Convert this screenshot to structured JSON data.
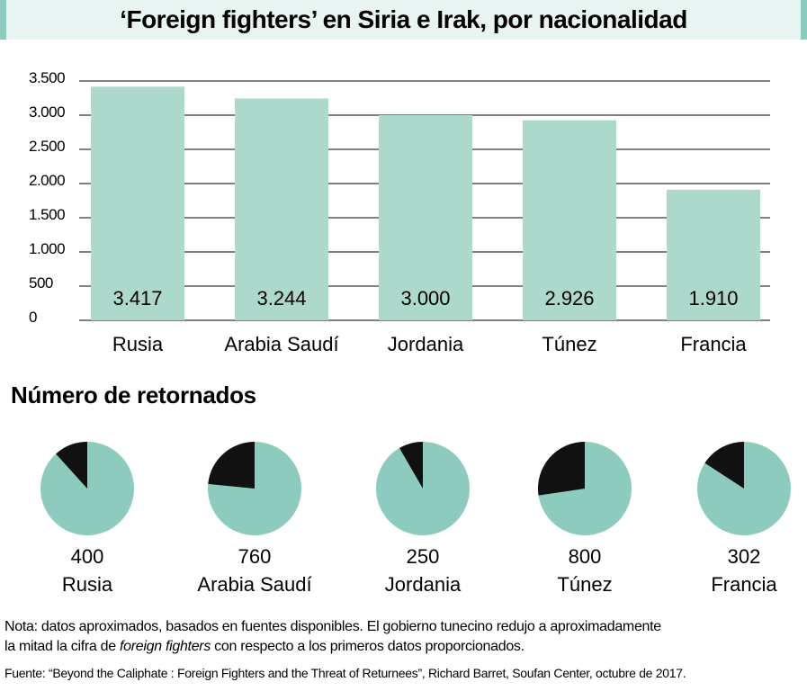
{
  "title": "‘Foreign fighters’ en Siria e Irak, por nacionalidad",
  "subtitle": "Número de retornados",
  "note": {
    "line1": "Nota: datos aproximados, basados en fuentes disponibles. El gobierno tunecino redujo a aproximadamente",
    "line2_pre": "la mitad la cifra de ",
    "line2_italic": "foreign fighters",
    "line2_post": " con respecto a los primeros datos proporcionados."
  },
  "source": "Fuente: “Beyond the Caliphate : Foreign Fighters and the Threat of Returnees”,  Richard Barret, Soufan Center, octubre de 2017.",
  "colors": {
    "bar": "#acd9cc",
    "pie": "#8ccbbd",
    "returned": "#111111",
    "title_bg": "#e8f4f1"
  },
  "chart_data": [
    {
      "type": "bar",
      "title": "‘Foreign fighters’ en Siria e Irak, por nacionalidad",
      "categories": [
        "Rusia",
        "Arabia Saudí",
        "Jordania",
        "Túnez",
        "Francia"
      ],
      "values": [
        3417,
        3244,
        3000,
        2926,
        1910
      ],
      "value_labels": [
        "3.417",
        "3.244",
        "3.000",
        "2.926",
        "1.910"
      ],
      "ylim": [
        0,
        3500
      ],
      "yticks": [
        0,
        500,
        1000,
        1500,
        2000,
        2500,
        3000,
        3500
      ],
      "ytick_labels": [
        "0",
        "500",
        "1.000",
        "1.500",
        "2.000",
        "2.500",
        "3.000",
        "3.500"
      ],
      "grid": true
    },
    {
      "type": "pie",
      "title": "Número de retornados",
      "categories": [
        "Rusia",
        "Arabia Saudí",
        "Jordania",
        "Túnez",
        "Francia"
      ],
      "returned": [
        400,
        760,
        250,
        800,
        302
      ],
      "returned_labels": [
        "400",
        "760",
        "250",
        "800",
        "302"
      ],
      "totals": [
        3417,
        3244,
        3000,
        2926,
        1910
      ]
    }
  ]
}
